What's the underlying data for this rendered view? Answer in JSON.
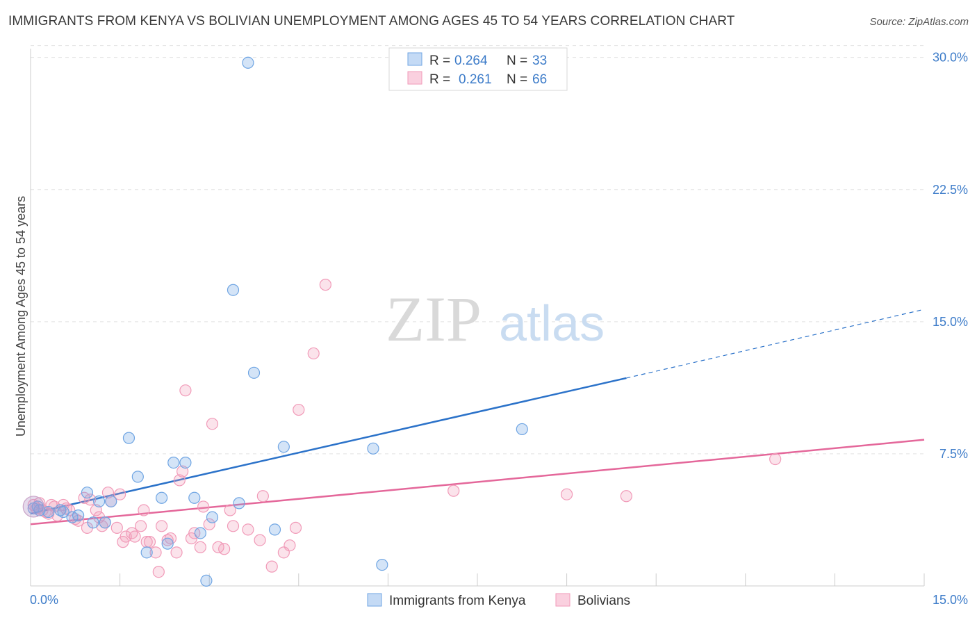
{
  "title": "IMMIGRANTS FROM KENYA VS BOLIVIAN UNEMPLOYMENT AMONG AGES 45 TO 54 YEARS CORRELATION CHART",
  "source": "Source: ZipAtlas.com",
  "watermark": {
    "zip": "ZIP",
    "atlas": "atlas"
  },
  "colors": {
    "kenya": "#6fa5e3",
    "kenya_line": "#2b72c9",
    "bolivians": "#f19ab8",
    "bolivians_line": "#e4679a",
    "tick": "#3d7cc9"
  },
  "legend": {
    "kenya": {
      "r_label": "R =",
      "r_value": "0.264",
      "n_label": "N =",
      "n_value": "33"
    },
    "bolivians": {
      "r_label": "R =",
      "r_value": "0.261",
      "n_label": "N =",
      "n_value": "66"
    }
  },
  "chart_data": {
    "type": "scatter",
    "title": "IMMIGRANTS FROM KENYA VS BOLIVIAN UNEMPLOYMENT AMONG AGES 45 TO 54 YEARS CORRELATION CHART",
    "xlabel": "",
    "ylabel": "Unemployment Among Ages 45 to 54 years",
    "xlim": [
      0,
      15
    ],
    "ylim": [
      0,
      30.5
    ],
    "x_tick_labels": [
      "0.0%",
      "15.0%"
    ],
    "y_ticks": [
      7.5,
      15.0,
      22.5,
      30.0
    ],
    "y_tick_labels": [
      "7.5%",
      "15.0%",
      "22.5%",
      "30.0%"
    ],
    "grid": true,
    "legend_position": "top-center",
    "series": [
      {
        "name": "Immigrants from Kenya",
        "points": [
          [
            0.05,
            4.4
          ],
          [
            0.15,
            4.3
          ],
          [
            0.3,
            4.2
          ],
          [
            0.5,
            4.3
          ],
          [
            0.55,
            4.2
          ],
          [
            0.7,
            3.9
          ],
          [
            0.8,
            4.0
          ],
          [
            0.95,
            5.3
          ],
          [
            1.05,
            3.6
          ],
          [
            1.15,
            4.8
          ],
          [
            1.25,
            3.6
          ],
          [
            1.35,
            4.8
          ],
          [
            1.65,
            8.4
          ],
          [
            1.8,
            6.2
          ],
          [
            1.95,
            1.9
          ],
          [
            2.2,
            5.0
          ],
          [
            2.3,
            2.4
          ],
          [
            2.4,
            7.0
          ],
          [
            2.6,
            7.0
          ],
          [
            2.75,
            5.0
          ],
          [
            2.85,
            3.0
          ],
          [
            2.95,
            0.3
          ],
          [
            3.05,
            3.9
          ],
          [
            3.4,
            16.8
          ],
          [
            3.5,
            4.7
          ],
          [
            3.65,
            29.7
          ],
          [
            3.75,
            12.1
          ],
          [
            4.1,
            3.2
          ],
          [
            4.25,
            7.9
          ],
          [
            5.75,
            7.8
          ],
          [
            5.9,
            1.2
          ],
          [
            8.25,
            8.9
          ],
          [
            0.12,
            4.5
          ]
        ],
        "trend": {
          "x": [
            0.0,
            10.0
          ],
          "y": [
            4.1,
            11.8
          ],
          "dashed_extension": {
            "x": [
              10.0,
              15.0
            ],
            "y": [
              11.8,
              15.7
            ]
          }
        }
      },
      {
        "name": "Bolivians",
        "points": [
          [
            0.05,
            4.6
          ],
          [
            0.2,
            4.3
          ],
          [
            0.3,
            4.1
          ],
          [
            0.35,
            4.6
          ],
          [
            0.45,
            4.0
          ],
          [
            0.55,
            4.6
          ],
          [
            0.65,
            4.3
          ],
          [
            0.8,
            3.7
          ],
          [
            0.9,
            5.0
          ],
          [
            0.95,
            3.3
          ],
          [
            1.0,
            4.9
          ],
          [
            1.1,
            4.3
          ],
          [
            1.15,
            3.9
          ],
          [
            1.2,
            3.4
          ],
          [
            1.3,
            5.3
          ],
          [
            1.35,
            4.8
          ],
          [
            1.45,
            3.3
          ],
          [
            1.5,
            5.2
          ],
          [
            1.55,
            2.5
          ],
          [
            1.6,
            2.8
          ],
          [
            1.7,
            3.0
          ],
          [
            1.75,
            2.8
          ],
          [
            1.85,
            3.4
          ],
          [
            1.9,
            4.3
          ],
          [
            1.95,
            2.5
          ],
          [
            2.0,
            2.5
          ],
          [
            2.1,
            1.9
          ],
          [
            2.15,
            0.8
          ],
          [
            2.2,
            3.4
          ],
          [
            2.3,
            2.6
          ],
          [
            2.35,
            2.7
          ],
          [
            2.45,
            1.9
          ],
          [
            2.5,
            6.0
          ],
          [
            2.55,
            6.5
          ],
          [
            2.6,
            11.1
          ],
          [
            2.7,
            2.7
          ],
          [
            2.75,
            3.0
          ],
          [
            2.85,
            2.2
          ],
          [
            2.9,
            4.5
          ],
          [
            3.0,
            3.5
          ],
          [
            3.05,
            9.2
          ],
          [
            3.15,
            2.2
          ],
          [
            3.25,
            2.1
          ],
          [
            3.35,
            4.3
          ],
          [
            3.4,
            3.4
          ],
          [
            3.65,
            3.2
          ],
          [
            3.85,
            2.6
          ],
          [
            3.9,
            5.1
          ],
          [
            4.05,
            1.1
          ],
          [
            4.25,
            1.9
          ],
          [
            4.35,
            2.3
          ],
          [
            4.45,
            3.3
          ],
          [
            4.5,
            10.0
          ],
          [
            4.75,
            13.2
          ],
          [
            4.95,
            17.1
          ],
          [
            7.1,
            5.4
          ],
          [
            9.0,
            5.2
          ],
          [
            10.0,
            5.1
          ],
          [
            12.5,
            7.2
          ],
          [
            0.1,
            4.4
          ],
          [
            0.25,
            4.2
          ],
          [
            0.4,
            4.5
          ],
          [
            0.6,
            4.4
          ],
          [
            0.75,
            3.8
          ],
          [
            1.25,
            3.6
          ],
          [
            0.15,
            4.7
          ]
        ],
        "trend": {
          "x": [
            0.0,
            15.0
          ],
          "y": [
            3.5,
            8.3
          ]
        }
      }
    ]
  },
  "bottom_legend": [
    "Immigrants from Kenya",
    "Bolivians"
  ]
}
